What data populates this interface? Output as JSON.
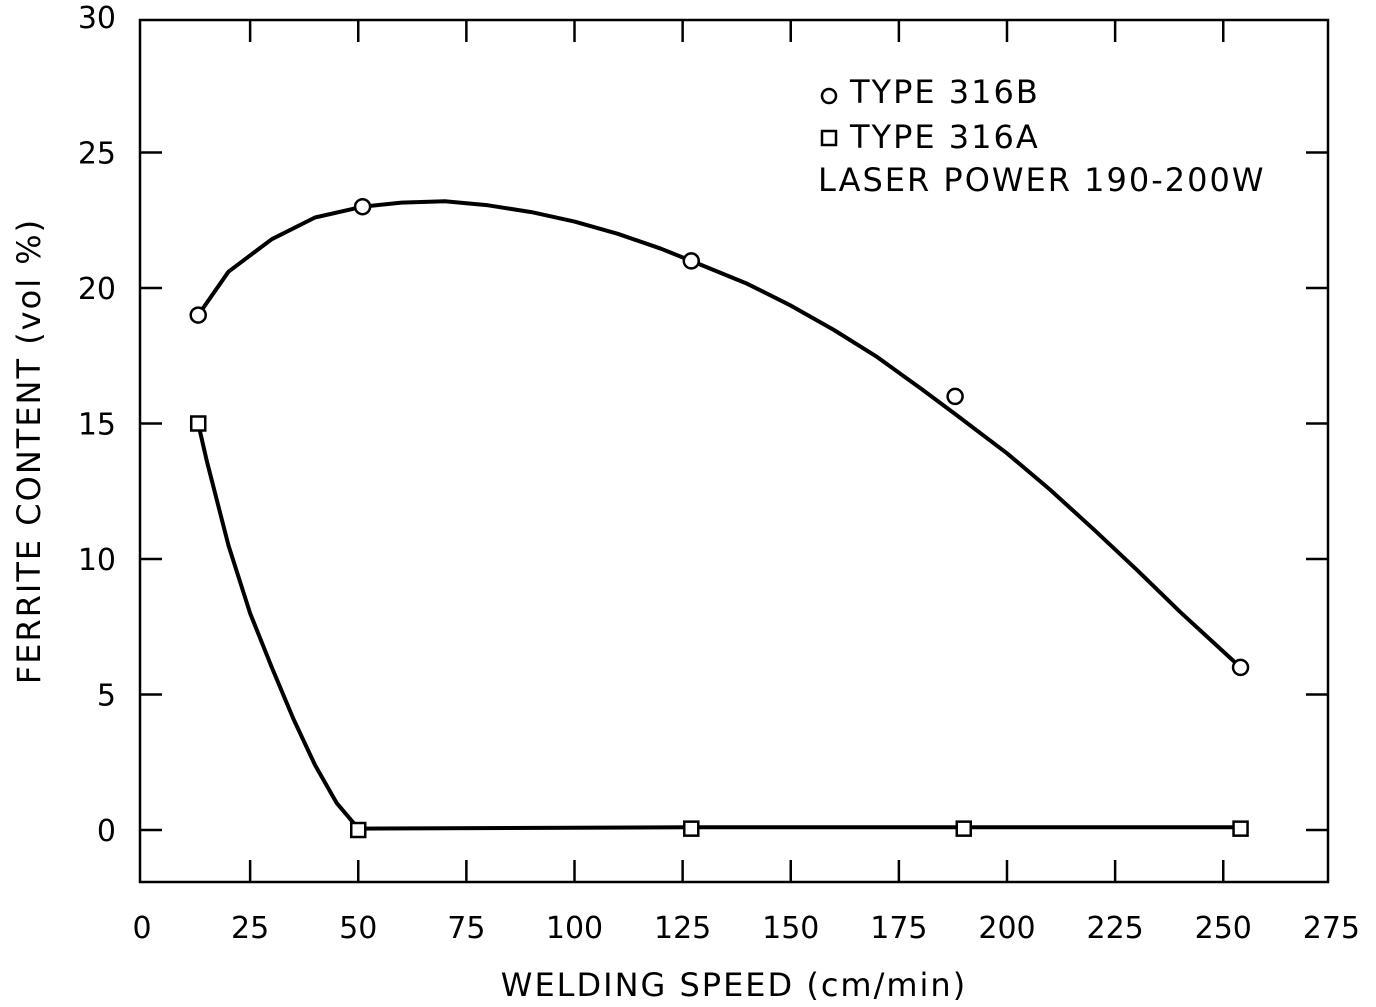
{
  "chart_data": {
    "type": "line",
    "xlabel": "WELDING SPEED (cm/min)",
    "ylabel": "FERRITE CONTENT (vol %)",
    "xlim": [
      0,
      275
    ],
    "ylim": [
      -2,
      30
    ],
    "x_ticks": [
      0,
      25,
      50,
      75,
      100,
      125,
      150,
      175,
      200,
      225,
      250,
      275
    ],
    "x_tick_labels": [
      "0",
      "25",
      "50",
      "75",
      "100",
      "125",
      "150",
      "175",
      "200",
      "225",
      "250",
      "275"
    ],
    "y_ticks": [
      0,
      5,
      10,
      15,
      20,
      25,
      30
    ],
    "y_tick_labels": [
      "0",
      "5",
      "10",
      "15",
      "20",
      "25",
      "30"
    ],
    "grid": false,
    "legend_position": "top-right",
    "series": [
      {
        "name": "TYPE 316B",
        "marker": "circle",
        "x": [
          13,
          51,
          127,
          188,
          254
        ],
        "y": [
          19,
          23,
          21,
          16,
          6
        ],
        "curve_x": [
          13,
          20,
          30,
          40,
          51,
          60,
          70,
          80,
          90,
          100,
          110,
          120,
          127,
          140,
          150,
          160,
          170,
          180,
          188,
          200,
          210,
          220,
          230,
          240,
          254
        ],
        "curve_y": [
          19.0,
          20.6,
          21.8,
          22.6,
          23.0,
          23.15,
          23.2,
          23.05,
          22.8,
          22.45,
          22.0,
          21.45,
          21.0,
          20.15,
          19.35,
          18.45,
          17.45,
          16.3,
          15.35,
          13.9,
          12.55,
          11.1,
          9.6,
          8.05,
          6.0
        ]
      },
      {
        "name": "TYPE 316A",
        "marker": "square",
        "x": [
          13,
          50,
          127,
          190,
          254
        ],
        "y": [
          15,
          0,
          0.05,
          0.05,
          0.05
        ],
        "curve_x": [
          13,
          15,
          20,
          25,
          30,
          35,
          40,
          45,
          50,
          127,
          190,
          254
        ],
        "curve_y": [
          15.0,
          13.6,
          10.5,
          8.0,
          6.0,
          4.1,
          2.4,
          1.0,
          0.05,
          0.1,
          0.1,
          0.1
        ]
      }
    ],
    "annotation": "LASER POWER 190-200W"
  }
}
